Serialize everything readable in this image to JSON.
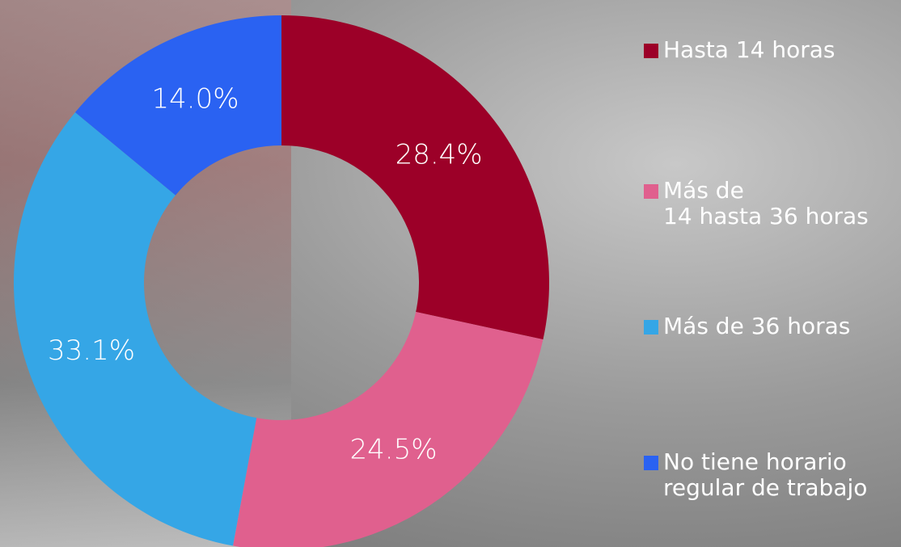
{
  "chart_data": {
    "type": "donut",
    "categories": [
      "Hasta 14 horas",
      "Más de\n14 hasta 36 horas",
      "Más de 36 horas",
      "No tiene horario\nregular de trabajo"
    ],
    "values": [
      28.4,
      24.5,
      33.1,
      14.0
    ],
    "value_labels": [
      "28.4%",
      "24.5%",
      "33.1%",
      "14.0%"
    ],
    "colors": [
      "#9c0028",
      "#e0608e",
      "#35a6e6",
      "#2a62f2"
    ],
    "legend": "right"
  }
}
